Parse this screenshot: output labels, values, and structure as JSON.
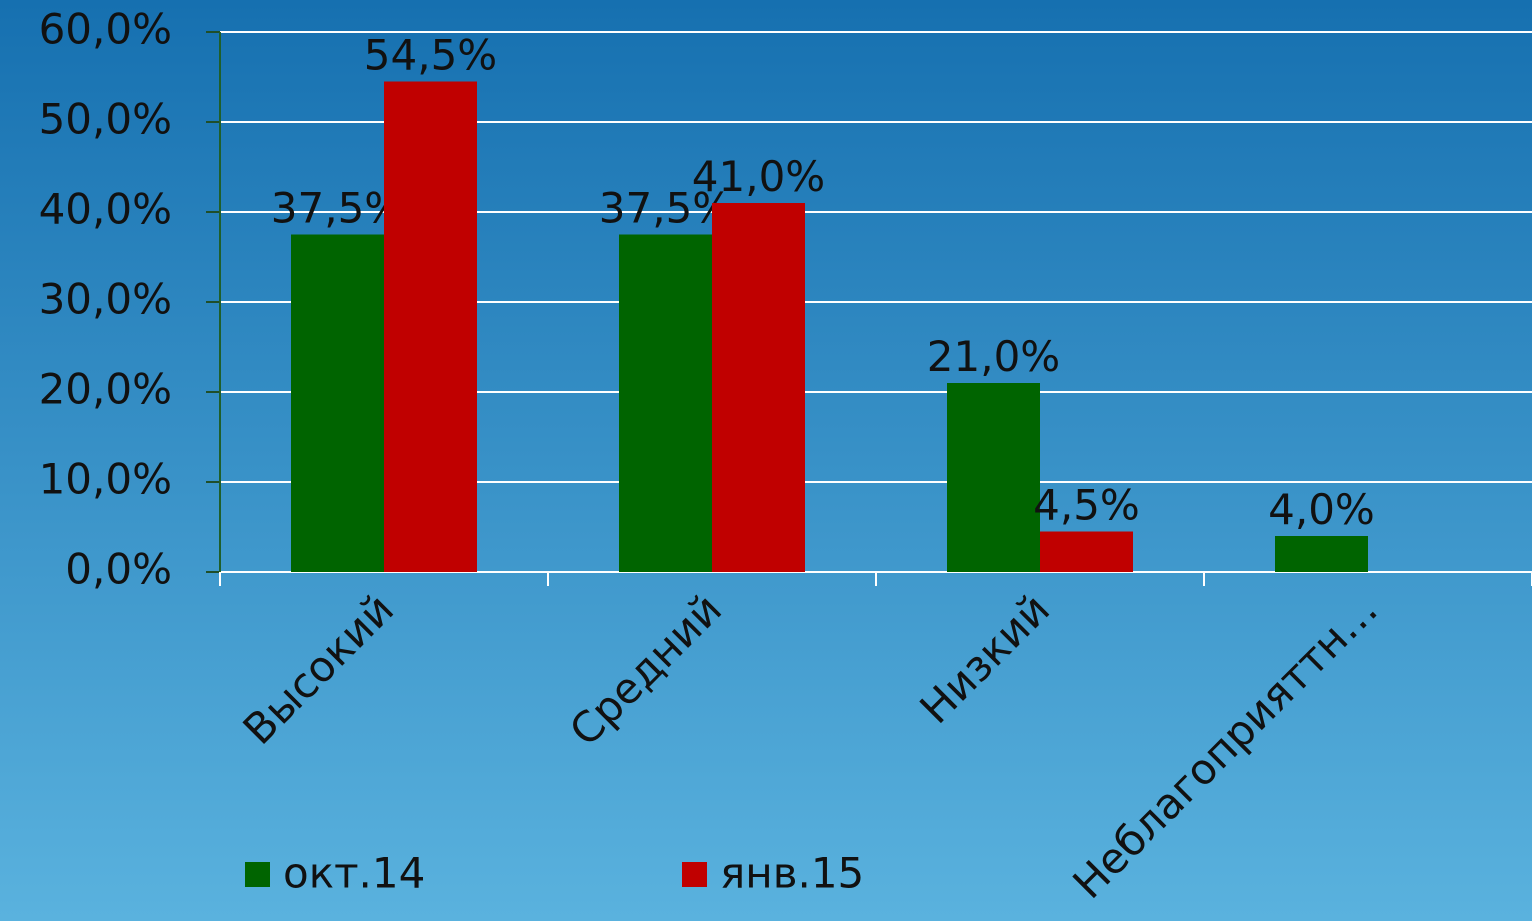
{
  "chart_data": {
    "type": "bar",
    "categories": [
      "Высокий",
      "Средний",
      "Низкий",
      "Неблагоприяттн…"
    ],
    "series": [
      {
        "name": "окт.14",
        "color": "#006400",
        "values": [
          37.5,
          37.5,
          21.0,
          4.0
        ],
        "value_labels": [
          "37,5%",
          "37,5%",
          "21,0%",
          "4,0%"
        ]
      },
      {
        "name": "янв.15",
        "color": "#c00000",
        "values": [
          54.5,
          41.0,
          4.5,
          null
        ],
        "value_labels": [
          "54,5%",
          "41,0%",
          "4,5%",
          null
        ]
      }
    ],
    "ylim": [
      0,
      60
    ],
    "yticks": [
      {
        "value": 0,
        "label": "0,0%"
      },
      {
        "value": 10,
        "label": "10,0%"
      },
      {
        "value": 20,
        "label": "20,0%"
      },
      {
        "value": 30,
        "label": "30,0%"
      },
      {
        "value": 40,
        "label": "40,0%"
      },
      {
        "value": 50,
        "label": "50,0%"
      },
      {
        "value": 60,
        "label": "60,0%"
      }
    ],
    "grid": true,
    "legend": "bottom"
  }
}
